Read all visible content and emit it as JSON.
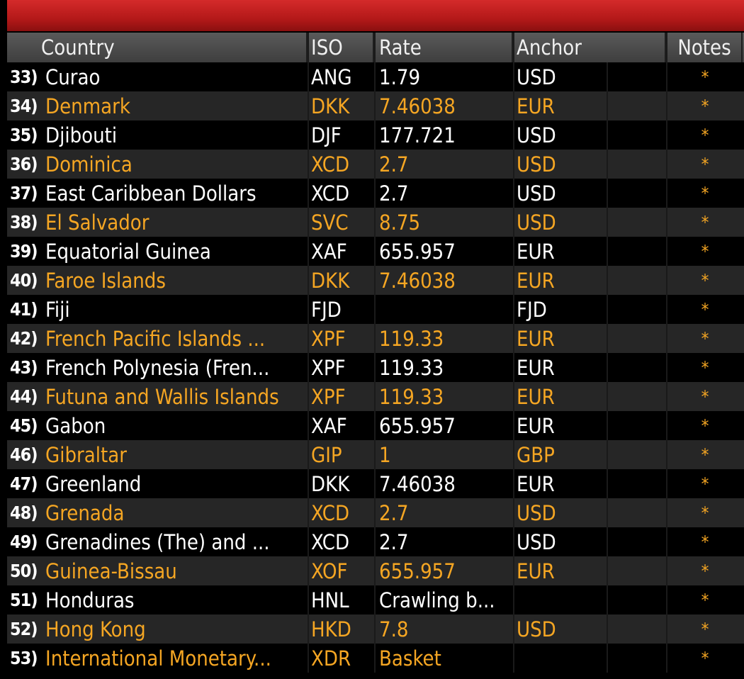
{
  "header": {
    "country": "Country",
    "iso": "ISO",
    "rate": "Rate",
    "anchor": "Anchor",
    "notes": "Notes"
  },
  "rows": [
    {
      "num": "33)",
      "country": "Curao",
      "iso": "ANG",
      "rate": "1.79",
      "anchor": "USD",
      "note": "*",
      "color": "white"
    },
    {
      "num": "34)",
      "country": "Denmark",
      "iso": "DKK",
      "rate": "7.46038",
      "anchor": "EUR",
      "note": "*",
      "color": "orange"
    },
    {
      "num": "35)",
      "country": "Djibouti",
      "iso": "DJF",
      "rate": "177.721",
      "anchor": "USD",
      "note": "*",
      "color": "white"
    },
    {
      "num": "36)",
      "country": "Dominica",
      "iso": "XCD",
      "rate": "2.7",
      "anchor": "USD",
      "note": "*",
      "color": "orange"
    },
    {
      "num": "37)",
      "country": "East Caribbean Dollars",
      "iso": "XCD",
      "rate": "2.7",
      "anchor": "USD",
      "note": "*",
      "color": "white"
    },
    {
      "num": "38)",
      "country": "El Salvador",
      "iso": "SVC",
      "rate": "8.75",
      "anchor": "USD",
      "note": "*",
      "color": "orange"
    },
    {
      "num": "39)",
      "country": "Equatorial Guinea",
      "iso": "XAF",
      "rate": "655.957",
      "anchor": "EUR",
      "note": "*",
      "color": "white"
    },
    {
      "num": "40)",
      "country": "Faroe Islands",
      "iso": "DKK",
      "rate": "7.46038",
      "anchor": "EUR",
      "note": "*",
      "color": "orange"
    },
    {
      "num": "41)",
      "country": "Fiji",
      "iso": "FJD",
      "rate": "",
      "anchor": "FJD",
      "note": "*",
      "color": "white"
    },
    {
      "num": "42)",
      "country": "French Pacific Islands ...",
      "iso": "XPF",
      "rate": "119.33",
      "anchor": "EUR",
      "note": "*",
      "color": "orange"
    },
    {
      "num": "43)",
      "country": "French Polynesia (Fren...",
      "iso": "XPF",
      "rate": "119.33",
      "anchor": "EUR",
      "note": "*",
      "color": "white"
    },
    {
      "num": "44)",
      "country": "Futuna and Wallis Islands",
      "iso": "XPF",
      "rate": "119.33",
      "anchor": "EUR",
      "note": "*",
      "color": "orange"
    },
    {
      "num": "45)",
      "country": "Gabon",
      "iso": "XAF",
      "rate": "655.957",
      "anchor": "EUR",
      "note": "*",
      "color": "white"
    },
    {
      "num": "46)",
      "country": "Gibraltar",
      "iso": "GIP",
      "rate": "1",
      "anchor": "GBP",
      "note": "*",
      "color": "orange"
    },
    {
      "num": "47)",
      "country": "Greenland",
      "iso": "DKK",
      "rate": "7.46038",
      "anchor": "EUR",
      "note": "*",
      "color": "white"
    },
    {
      "num": "48)",
      "country": "Grenada",
      "iso": "XCD",
      "rate": "2.7",
      "anchor": "USD",
      "note": "*",
      "color": "orange"
    },
    {
      "num": "49)",
      "country": "Grenadines (The) and ...",
      "iso": "XCD",
      "rate": "2.7",
      "anchor": "USD",
      "note": "*",
      "color": "white"
    },
    {
      "num": "50)",
      "country": "Guinea-Bissau",
      "iso": "XOF",
      "rate": "655.957",
      "anchor": "EUR",
      "note": "*",
      "color": "orange"
    },
    {
      "num": "51)",
      "country": "Honduras",
      "iso": "HNL",
      "rate": "Crawling b...",
      "anchor": "",
      "note": "*",
      "color": "white"
    },
    {
      "num": "52)",
      "country": "Hong Kong",
      "iso": "HKD",
      "rate": "7.8",
      "anchor": "USD",
      "note": "*",
      "color": "orange"
    },
    {
      "num": "53)",
      "country": "International Monetary...",
      "iso": "XDR",
      "rate": "Basket",
      "anchor": "",
      "note": "*",
      "color": "orange"
    }
  ],
  "colors": {
    "white": "#ffffff",
    "orange": "#f5a623",
    "header_bar": "#c41f1f"
  }
}
